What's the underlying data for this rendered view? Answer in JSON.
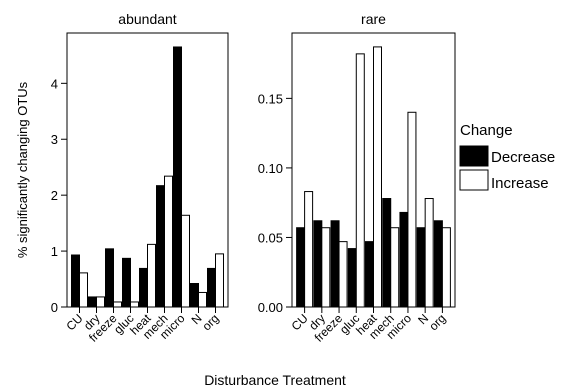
{
  "chart_data": [
    {
      "type": "bar",
      "title": "abundant",
      "categories": [
        "CU",
        "dry",
        "freeze",
        "gluc",
        "heat",
        "mech",
        "micro",
        "N",
        "org"
      ],
      "series": [
        {
          "name": "Decrease",
          "values": [
            0.93,
            0.18,
            1.04,
            0.87,
            0.69,
            2.17,
            4.65,
            0.42,
            0.69
          ]
        },
        {
          "name": "Increase",
          "values": [
            0.61,
            0.18,
            0.09,
            0.09,
            1.12,
            2.34,
            1.64,
            0.26,
            0.95
          ]
        }
      ],
      "yticks": [
        "0",
        "1",
        "2",
        "3",
        "4"
      ],
      "ytick_values": [
        0,
        1,
        2,
        3,
        4
      ],
      "ylim": [
        0,
        4.9
      ]
    },
    {
      "type": "bar",
      "title": "rare",
      "categories": [
        "CU",
        "dry",
        "freeze",
        "gluc",
        "heat",
        "mech",
        "micro",
        "N",
        "org"
      ],
      "series": [
        {
          "name": "Decrease",
          "values": [
            0.057,
            0.062,
            0.062,
            0.042,
            0.047,
            0.078,
            0.068,
            0.057,
            0.062
          ]
        },
        {
          "name": "Increase",
          "values": [
            0.083,
            0.057,
            0.047,
            0.182,
            0.187,
            0.057,
            0.14,
            0.078,
            0.057
          ]
        }
      ],
      "yticks": [
        "0.00",
        "0.05",
        "0.10",
        "0.15"
      ],
      "ytick_values": [
        0,
        0.05,
        0.1,
        0.15
      ],
      "ylim": [
        0,
        0.197
      ]
    }
  ],
  "ylabel": "% significantly changing OTUs",
  "xlabel": "Disturbance Treatment",
  "legend": {
    "title": "Change",
    "position": "right",
    "items": [
      {
        "label": "Decrease",
        "color": "#000000"
      },
      {
        "label": "Increase",
        "color": "#ffffff"
      }
    ]
  }
}
